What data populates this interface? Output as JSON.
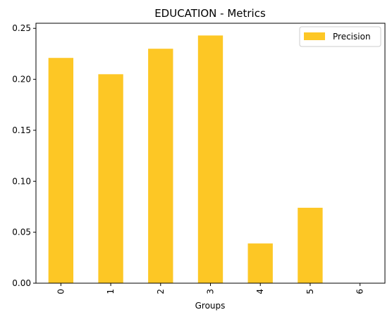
{
  "chart_data": {
    "type": "bar",
    "title": "EDUCATION - Metrics",
    "xlabel": "Groups",
    "ylabel": "",
    "categories": [
      "0",
      "1",
      "2",
      "3",
      "4",
      "5",
      "6"
    ],
    "series": [
      {
        "name": "Precision",
        "values": [
          0.221,
          0.205,
          0.23,
          0.243,
          0.039,
          0.074,
          0.0
        ],
        "color": "#fdc725"
      }
    ],
    "ylim": [
      0,
      0.255
    ],
    "yticks": [
      0.0,
      0.05,
      0.1,
      0.15,
      0.2,
      0.25
    ],
    "ytick_labels": [
      "0.00",
      "0.05",
      "0.10",
      "0.15",
      "0.20",
      "0.25"
    ],
    "grid": false,
    "legend_position": "top-right"
  }
}
